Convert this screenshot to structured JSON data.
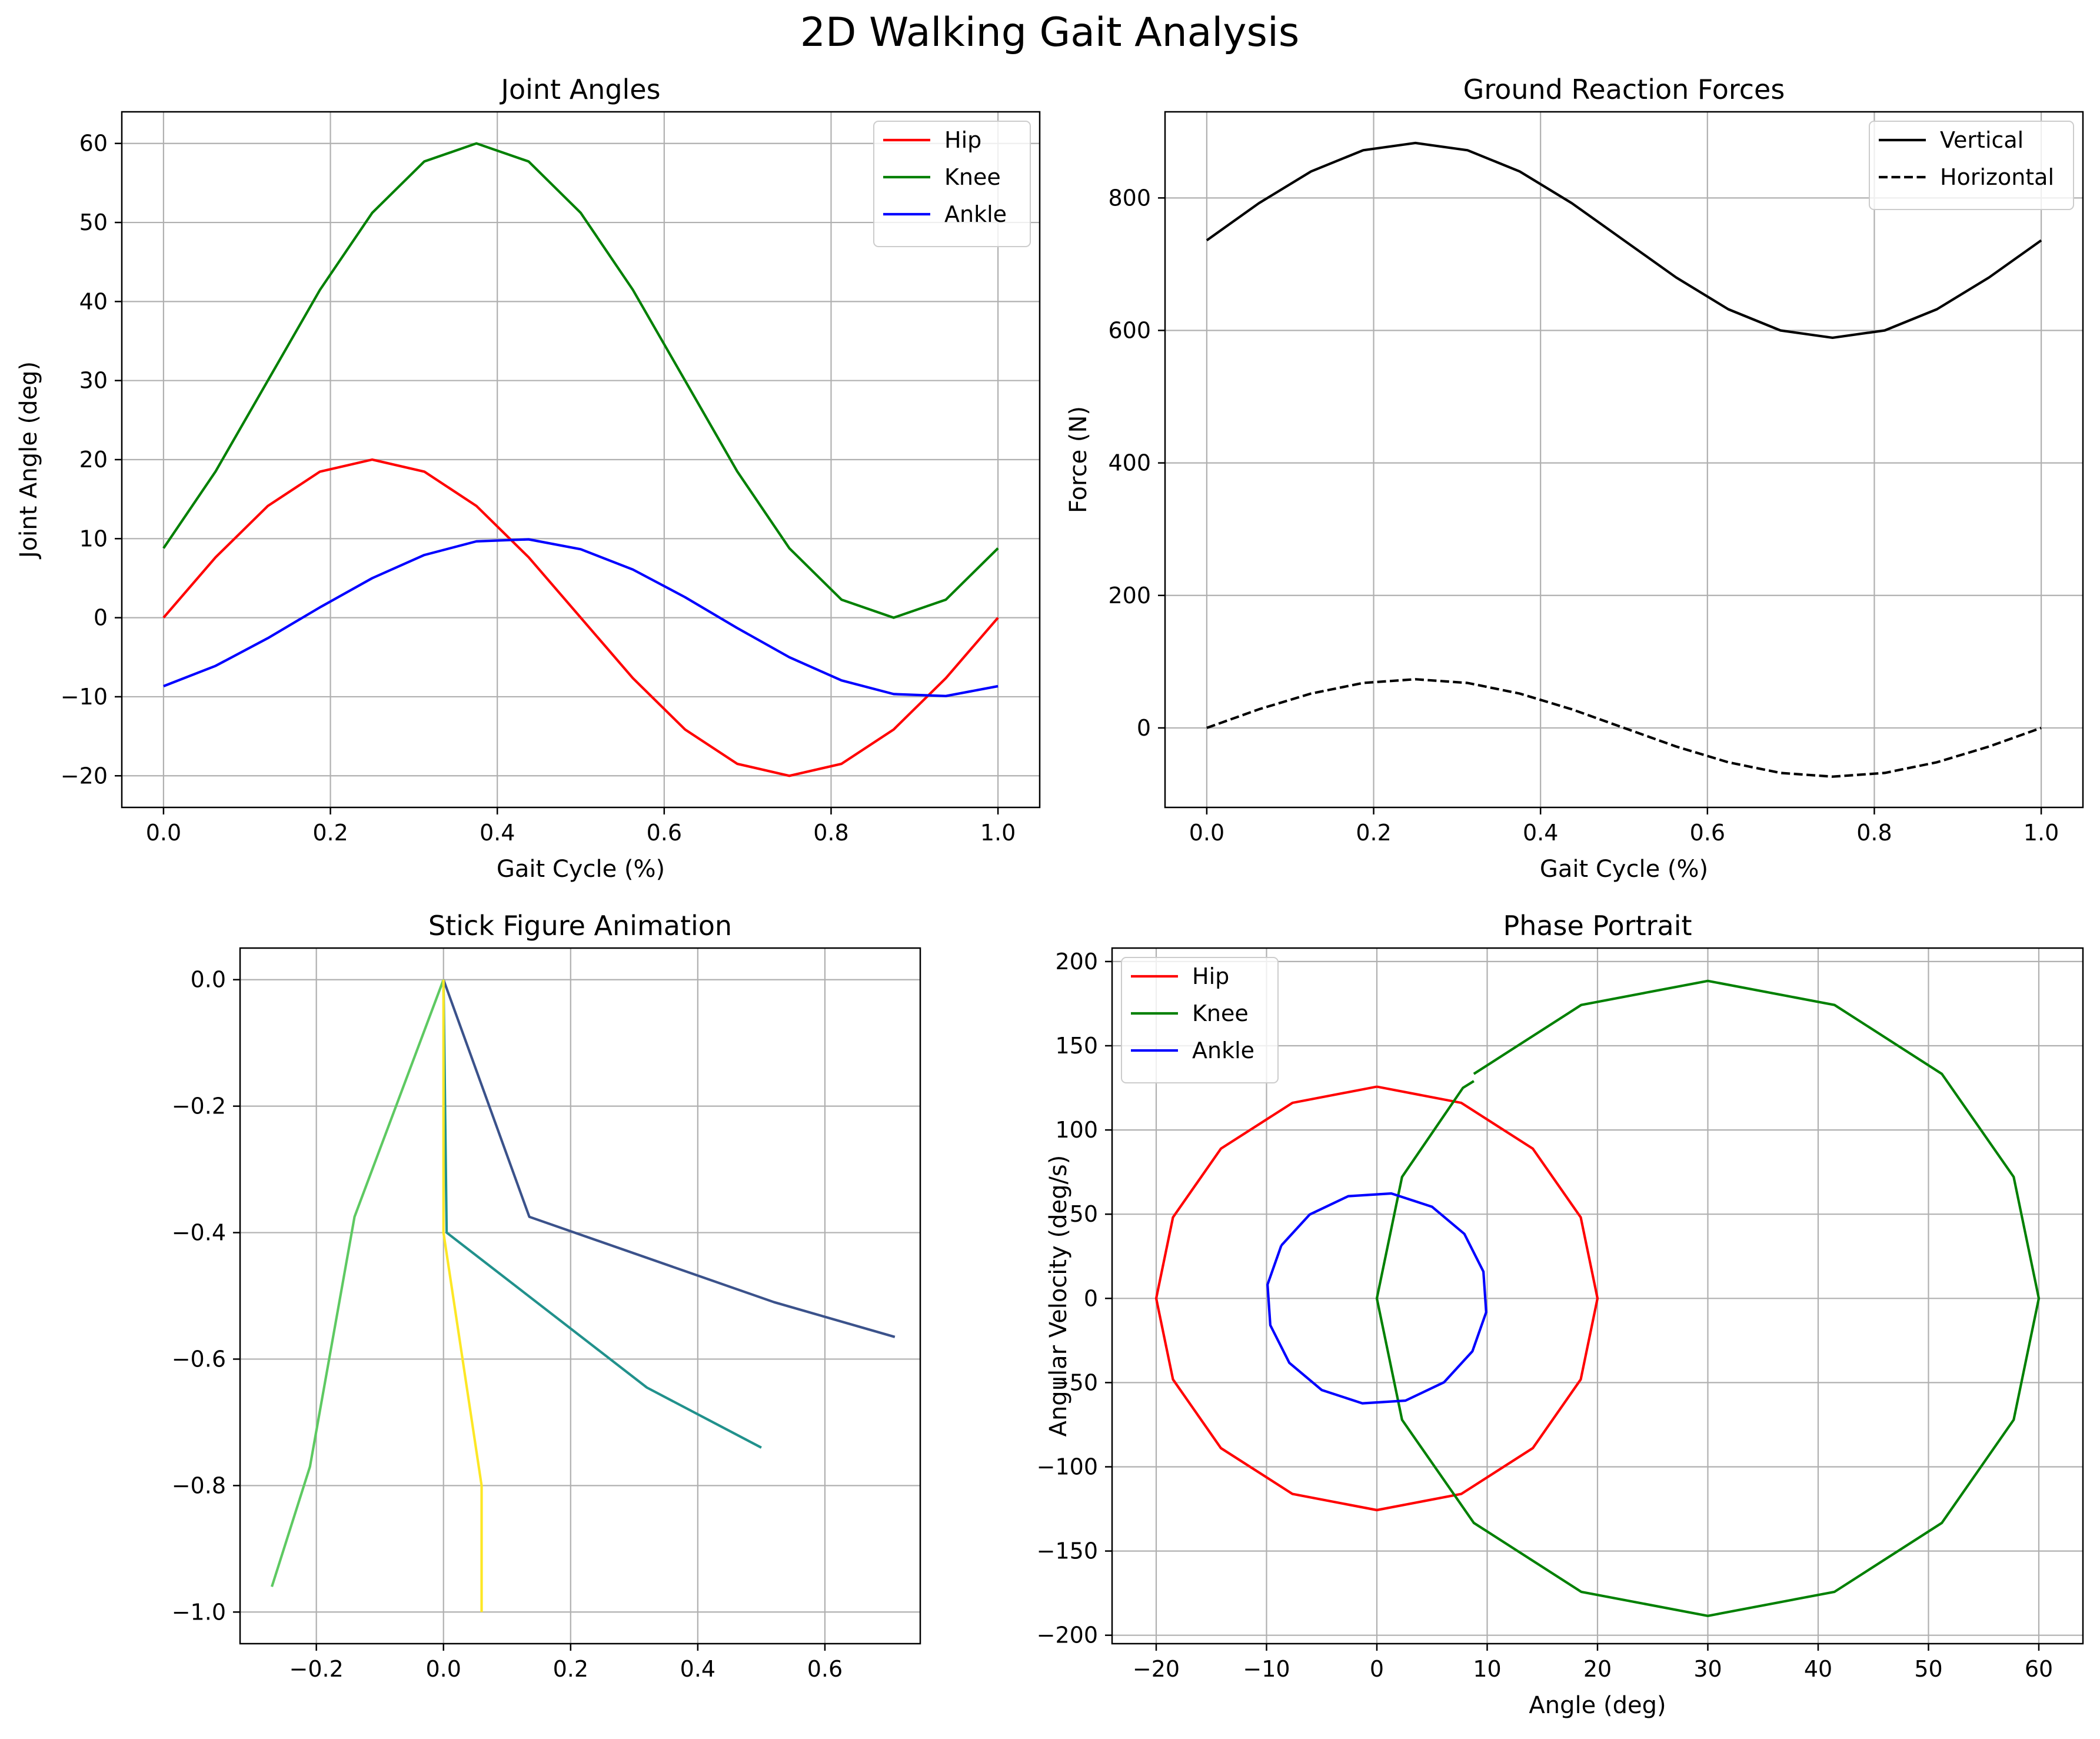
{
  "suptitle": "2D Walking Gait Analysis",
  "chart_data": [
    {
      "id": "joint-angles",
      "type": "line",
      "title": "Joint Angles",
      "xlabel": "Gait Cycle (%)",
      "ylabel": "Joint Angle (deg)",
      "xlim": [
        -0.05,
        1.05
      ],
      "ylim": [
        -24,
        64
      ],
      "xticks": [
        0.0,
        0.2,
        0.4,
        0.6,
        0.8,
        1.0
      ],
      "xtick_labels": [
        "0.0",
        "0.2",
        "0.4",
        "0.6",
        "0.8",
        "1.0"
      ],
      "yticks": [
        -20,
        -10,
        0,
        10,
        20,
        30,
        40,
        50,
        60
      ],
      "ytick_labels": [
        "−20",
        "−10",
        "0",
        "10",
        "20",
        "30",
        "40",
        "50",
        "60"
      ],
      "grid": true,
      "legend": "top-right",
      "series": [
        {
          "name": "Hip",
          "color": "#ff0000",
          "dash": "solid",
          "x": [
            0.0,
            0.0625,
            0.125,
            0.1875,
            0.25,
            0.3125,
            0.375,
            0.4375,
            0.5,
            0.5625,
            0.625,
            0.6875,
            0.75,
            0.8125,
            0.875,
            0.9375,
            1.0
          ],
          "y": [
            0,
            7.65,
            14.14,
            18.48,
            20,
            18.48,
            14.14,
            7.65,
            0,
            -7.65,
            -14.14,
            -18.48,
            -20,
            -18.48,
            -14.14,
            -7.65,
            0
          ]
        },
        {
          "name": "Knee",
          "color": "#008000",
          "dash": "solid",
          "x": [
            0.0,
            0.0625,
            0.125,
            0.1875,
            0.25,
            0.3125,
            0.375,
            0.4375,
            0.5,
            0.5625,
            0.625,
            0.6875,
            0.75,
            0.8125,
            0.875,
            0.9375,
            1.0
          ],
          "y": [
            8.79,
            18.52,
            30,
            41.48,
            51.21,
            57.72,
            60,
            57.72,
            51.21,
            41.48,
            30,
            18.52,
            8.79,
            2.28,
            0,
            2.28,
            8.79
          ]
        },
        {
          "name": "Ankle",
          "color": "#0000ff",
          "dash": "solid",
          "x": [
            0.0,
            0.0625,
            0.125,
            0.1875,
            0.25,
            0.3125,
            0.375,
            0.4375,
            0.5,
            0.5625,
            0.625,
            0.6875,
            0.75,
            0.8125,
            0.875,
            0.9375,
            1.0
          ],
          "y": [
            -8.66,
            -6.09,
            -2.59,
            1.31,
            5,
            7.93,
            9.66,
            9.91,
            8.66,
            6.09,
            2.59,
            -1.31,
            -5,
            -7.93,
            -9.66,
            -9.91,
            -8.66
          ]
        }
      ]
    },
    {
      "id": "ground-reaction-forces",
      "type": "line",
      "title": "Ground Reaction Forces",
      "xlabel": "Gait Cycle (%)",
      "ylabel": "Force (N)",
      "xlim": [
        -0.05,
        1.05
      ],
      "ylim": [
        -120,
        930
      ],
      "xticks": [
        0.0,
        0.2,
        0.4,
        0.6,
        0.8,
        1.0
      ],
      "xtick_labels": [
        "0.0",
        "0.2",
        "0.4",
        "0.6",
        "0.8",
        "1.0"
      ],
      "yticks": [
        0,
        200,
        400,
        600,
        800
      ],
      "ytick_labels": [
        "0",
        "200",
        "400",
        "600",
        "800"
      ],
      "grid": true,
      "legend": "top-right",
      "series": [
        {
          "name": "Vertical",
          "color": "#000000",
          "dash": "solid",
          "x": [
            0.0,
            0.0625,
            0.125,
            0.1875,
            0.25,
            0.3125,
            0.375,
            0.4375,
            0.5,
            0.5625,
            0.625,
            0.6875,
            0.75,
            0.8125,
            0.875,
            0.9375,
            1.0
          ],
          "y": [
            736,
            792,
            840,
            872,
            883,
            872,
            840,
            792,
            736,
            680,
            632,
            600,
            589,
            600,
            632,
            680,
            736
          ]
        },
        {
          "name": "Horizontal",
          "color": "#000000",
          "dash": "dashed",
          "x": [
            0.0,
            0.0625,
            0.125,
            0.1875,
            0.25,
            0.3125,
            0.375,
            0.4375,
            0.5,
            0.5625,
            0.625,
            0.6875,
            0.75,
            0.8125,
            0.875,
            0.9375,
            1.0
          ],
          "y": [
            0,
            28.1,
            51.9,
            67.9,
            73.5,
            67.9,
            51.9,
            28.1,
            0,
            -28.1,
            -51.9,
            -67.9,
            -73.5,
            -67.9,
            -51.9,
            -28.1,
            0
          ]
        }
      ]
    },
    {
      "id": "stick-figure",
      "type": "line",
      "title": "Stick Figure Animation",
      "xlabel": "",
      "ylabel": "",
      "xlim": [
        -0.32,
        0.75
      ],
      "ylim": [
        -1.05,
        0.05
      ],
      "xticks": [
        -0.2,
        0.0,
        0.2,
        0.4,
        0.6
      ],
      "xtick_labels": [
        "−0.2",
        "0.0",
        "0.2",
        "0.4",
        "0.6"
      ],
      "yticks": [
        0.0,
        -0.2,
        -0.4,
        -0.6,
        -0.8,
        -1.0
      ],
      "ytick_labels": [
        "0.0",
        "−0.2",
        "−0.4",
        "−0.6",
        "−0.8",
        "−1.0"
      ],
      "grid": true,
      "series": [
        {
          "color": "#3b528b",
          "x": [
            0.0,
            0.135,
            0.52,
            0.71
          ],
          "y": [
            0.0,
            -0.375,
            -0.51,
            -0.565
          ]
        },
        {
          "color": "#21918c",
          "x": [
            0.0,
            0.005,
            0.32,
            0.5
          ],
          "y": [
            0.0,
            -0.4,
            -0.645,
            -0.74
          ]
        },
        {
          "color": "#5ec962",
          "x": [
            0.0,
            -0.14,
            -0.21,
            -0.27
          ],
          "y": [
            0.0,
            -0.375,
            -0.77,
            -0.96
          ]
        },
        {
          "color": "#fde725",
          "x": [
            0.0,
            0.0,
            0.06,
            0.06
          ],
          "y": [
            0.0,
            -0.4,
            -0.8,
            -1.0
          ]
        }
      ]
    },
    {
      "id": "phase-portrait",
      "type": "line",
      "title": "Phase Portrait",
      "xlabel": "Angle (deg)",
      "ylabel": "Angular Velocity (deg/s)",
      "xlim": [
        -24,
        64
      ],
      "ylim": [
        -205,
        208
      ],
      "xticks": [
        -20,
        -10,
        0,
        10,
        20,
        30,
        40,
        50,
        60
      ],
      "xtick_labels": [
        "−20",
        "−10",
        "0",
        "10",
        "20",
        "30",
        "40",
        "50",
        "60"
      ],
      "yticks": [
        -200,
        -150,
        -100,
        -50,
        0,
        50,
        100,
        150,
        200
      ],
      "ytick_labels": [
        "−200",
        "−150",
        "−100",
        "−50",
        "0",
        "50",
        "100",
        "150",
        "200"
      ],
      "grid": true,
      "legend": "top-left",
      "series": [
        {
          "name": "Hip",
          "color": "#ff0000",
          "dash": "solid",
          "x": [
            0,
            7.65,
            14.14,
            18.48,
            20,
            18.48,
            14.14,
            7.65,
            0,
            -7.65,
            -14.14,
            -18.48,
            -20,
            -18.48,
            -14.14,
            -7.65,
            0
          ],
          "y": [
            125.7,
            116.1,
            88.9,
            48.1,
            0,
            -48.1,
            -88.9,
            -116.1,
            -125.7,
            -116.1,
            -88.9,
            -48.1,
            0,
            48.1,
            88.9,
            116.1,
            125.7
          ]
        },
        {
          "name": "Knee",
          "color": "#008000",
          "dash": "solid",
          "x": [
            8.79,
            18.52,
            30,
            41.48,
            51.21,
            57.72,
            60,
            57.72,
            51.21,
            41.48,
            30,
            18.52,
            8.79,
            2.28,
            0,
            2.28,
            7.8,
            8.79
          ],
          "y": [
            133.3,
            174.2,
            188.5,
            174.2,
            133.3,
            72.1,
            0,
            -72.1,
            -133.3,
            -174.2,
            -188.5,
            -174.2,
            -133.3,
            -72.1,
            0,
            72.1,
            125,
            129
          ]
        },
        {
          "name": "Ankle",
          "color": "#0000ff",
          "dash": "solid",
          "x": [
            -8.66,
            -9.91,
            -9.66,
            -7.93,
            -5,
            -1.31,
            2.59,
            6.09,
            8.66,
            9.91,
            9.66,
            7.93,
            5,
            1.31,
            -2.59,
            -6.09,
            -8.66
          ],
          "y": [
            31.4,
            8.2,
            -15.9,
            -38.3,
            -54.4,
            -62.3,
            -60.7,
            -49.8,
            -31.4,
            -8.2,
            15.9,
            38.3,
            54.4,
            62.3,
            60.7,
            49.8,
            31.4
          ]
        }
      ]
    }
  ]
}
